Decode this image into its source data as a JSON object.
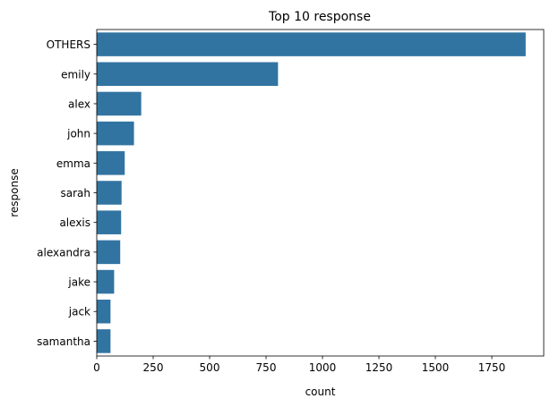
{
  "chart_data": {
    "type": "bar",
    "orientation": "horizontal",
    "title": "Top 10 response",
    "xlabel": "count",
    "ylabel": "response",
    "categories": [
      "OTHERS",
      "emily",
      "alex",
      "john",
      "emma",
      "sarah",
      "alexis",
      "alexandra",
      "jake",
      "jack",
      "samantha"
    ],
    "values": [
      1900,
      803,
      197,
      165,
      124,
      110,
      108,
      104,
      77,
      61,
      61
    ],
    "xlim": [
      0,
      1980
    ],
    "xticks": [
      0,
      250,
      500,
      750,
      1000,
      1250,
      1500,
      1750
    ],
    "grid": false,
    "legend": "none",
    "bar_color": "#3274a1"
  }
}
